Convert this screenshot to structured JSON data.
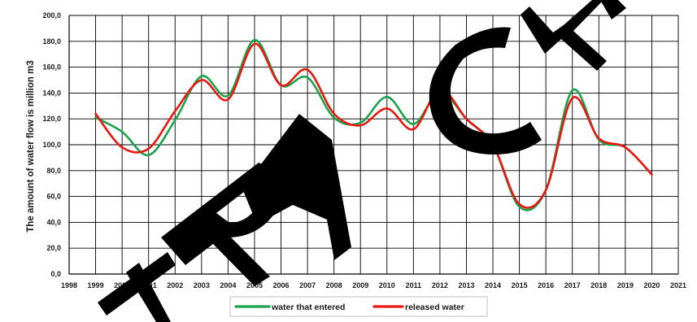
{
  "chart_data": {
    "type": "line",
    "title": "",
    "xlabel": "",
    "ylabel": "The amount of water flow is million m3",
    "xlim": [
      1998,
      2021
    ],
    "ylim": [
      0,
      200
    ],
    "x_ticks": [
      "1998",
      "1999",
      "2000",
      "2001",
      "2002",
      "2003",
      "2004",
      "2005",
      "2006",
      "2007",
      "2008",
      "2009",
      "2010",
      "2011",
      "2012",
      "2013",
      "2014",
      "2015",
      "2016",
      "2017",
      "2018",
      "2019",
      "2020",
      "2021"
    ],
    "y_ticks": [
      "0,0",
      "20,0",
      "40,0",
      "60,0",
      "80,0",
      "100,0",
      "120,0",
      "140,0",
      "160,0",
      "180,0",
      "200,0"
    ],
    "grid": true,
    "legend_position": "bottom",
    "x": [
      1999,
      2000,
      2001,
      2002,
      2003,
      2004,
      2005,
      2006,
      2007,
      2008,
      2009,
      2010,
      2011,
      2012,
      2013,
      2014,
      2015,
      2016,
      2017,
      2018,
      2019,
      2020
    ],
    "series": [
      {
        "name": "water that entered",
        "color": "#1aa34a",
        "values": [
          121,
          110,
          92,
          119,
          153,
          138,
          181,
          146,
          152,
          121,
          117,
          137,
          116,
          141,
          120,
          100,
          52,
          65,
          142,
          104,
          98,
          77
        ]
      },
      {
        "name": "released water",
        "color": "#e8170f",
        "values": [
          124,
          98,
          97,
          126,
          150,
          135,
          178,
          146,
          158,
          124,
          115,
          128,
          112,
          143,
          120,
          100,
          54,
          65,
          136,
          105,
          98,
          77
        ]
      }
    ],
    "watermark": "TRACK"
  }
}
